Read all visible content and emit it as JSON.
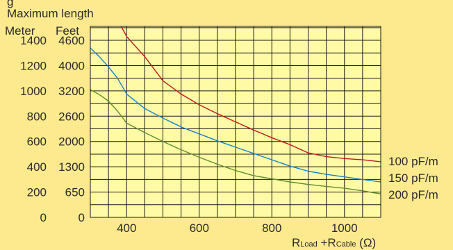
{
  "chart_data": {
    "type": "line",
    "title_partial": "g",
    "left_axis_title": "Maximum length",
    "left_unit_meter": "Meter",
    "left_unit_feet": "Feet",
    "xlabel": {
      "r1": "R",
      "s1": "Load",
      "plus": " +R",
      "s2": "Cable",
      "unit": " (Ω)"
    },
    "xlim": [
      300,
      1100
    ],
    "ylim": [
      0,
      1510
    ],
    "x_ticks": [
      400,
      600,
      800,
      1000
    ],
    "x_tick_labels": [
      "400",
      "600",
      "800",
      "1000"
    ],
    "y_ticks_meter": [
      0,
      200,
      400,
      600,
      800,
      1000,
      1200,
      1400
    ],
    "y_tick_labels_meter": [
      "0",
      "200",
      "400",
      "600",
      "800",
      "1000",
      "1200",
      "1400"
    ],
    "y_tick_labels_feet": [
      "0",
      "650",
      "1300",
      "2000",
      "2600",
      "3200",
      "4000",
      "4600"
    ],
    "grid": true,
    "series": [
      {
        "name": "100 pF/m",
        "color": "#c0191d",
        "x": [
          385,
          400,
          450,
          500,
          550,
          600,
          650,
          700,
          750,
          800,
          850,
          900,
          950,
          1000,
          1050,
          1100
        ],
        "y": [
          1510,
          1430,
          1270,
          1080,
          975,
          890,
          820,
          755,
          690,
          630,
          575,
          510,
          480,
          465,
          455,
          440
        ]
      },
      {
        "name": "150 pF/m",
        "color": "#1c7fc9",
        "x": [
          300,
          325,
          350,
          375,
          400,
          450,
          500,
          550,
          600,
          650,
          700,
          750,
          800,
          850,
          900,
          950,
          1000,
          1050,
          1100
        ],
        "y": [
          1340,
          1270,
          1190,
          1100,
          975,
          860,
          785,
          715,
          660,
          605,
          555,
          505,
          455,
          405,
          365,
          340,
          320,
          300,
          280
        ]
      },
      {
        "name": "200 pF/m",
        "color": "#5f8f2a",
        "x": [
          300,
          325,
          350,
          375,
          400,
          450,
          500,
          550,
          600,
          650,
          700,
          750,
          800,
          850,
          900,
          950,
          1000,
          1050,
          1100
        ],
        "y": [
          1010,
          970,
          920,
          840,
          745,
          670,
          600,
          535,
          475,
          420,
          370,
          330,
          305,
          280,
          260,
          245,
          230,
          210,
          185
        ]
      }
    ],
    "colors": {
      "plot_bg": "#fffaa6",
      "page_bg": "#fdea8f",
      "grid": "#1a1a1a"
    }
  }
}
